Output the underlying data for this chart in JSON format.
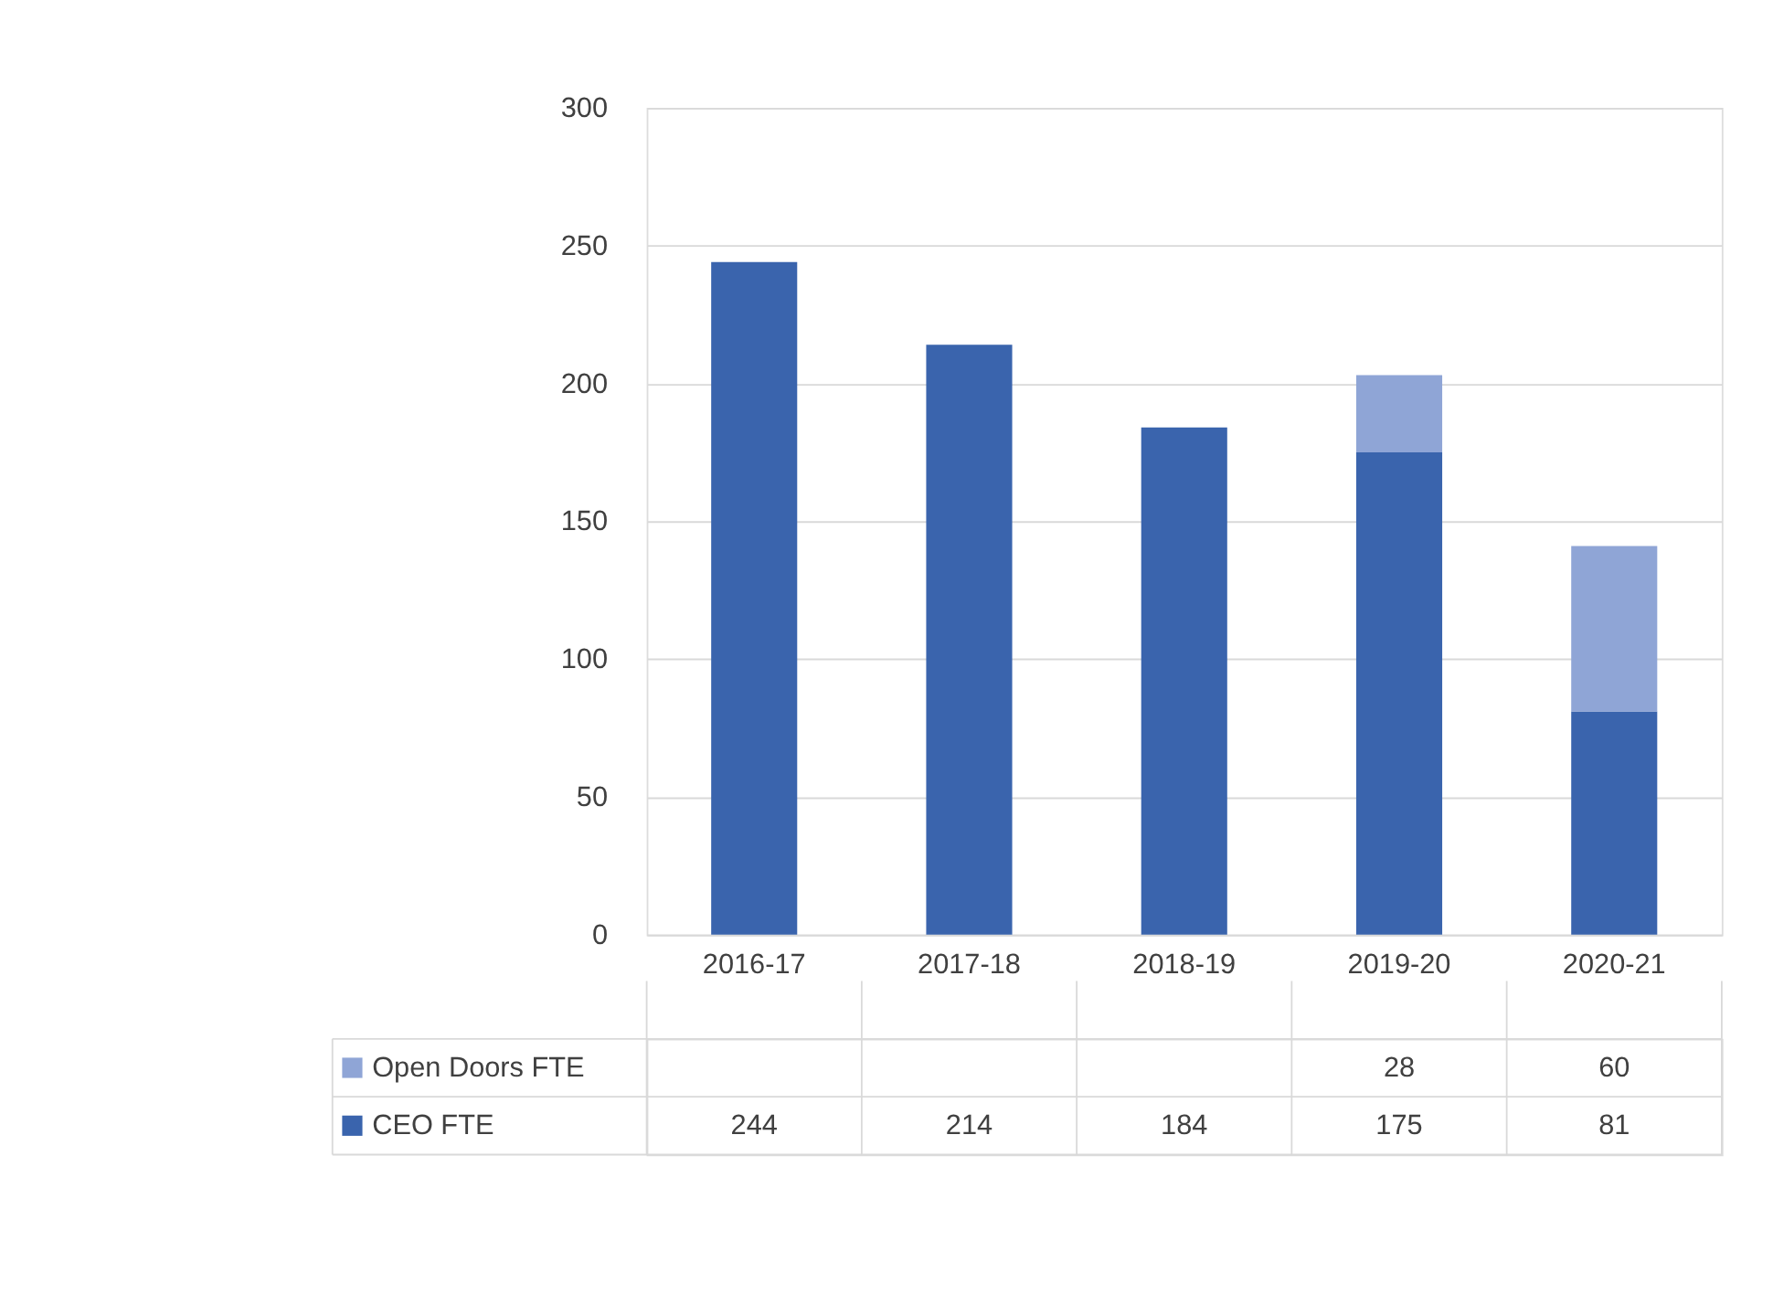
{
  "chart_data": {
    "type": "bar",
    "stacked": true,
    "categories": [
      "2016-17",
      "2017-18",
      "2018-19",
      "2019-20",
      "2020-21"
    ],
    "series": [
      {
        "name": "CEO FTE",
        "color": "#3a64ad",
        "values": [
          244,
          214,
          184,
          175,
          81
        ]
      },
      {
        "name": "Open Doors FTE",
        "color": "#8fa5d6",
        "values": [
          null,
          null,
          null,
          28,
          60
        ]
      }
    ],
    "ylim": [
      0,
      300
    ],
    "yticks": [
      0,
      50,
      100,
      150,
      200,
      250,
      300
    ],
    "grid": "y",
    "legend": "bottom",
    "data_labels": true
  }
}
